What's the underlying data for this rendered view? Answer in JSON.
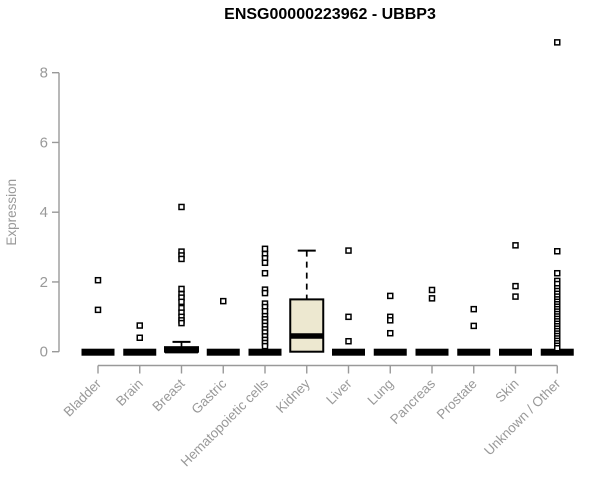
{
  "colors": {
    "background": "#ffffff",
    "title": "#000000",
    "axis": "#999999",
    "label": "#999999",
    "box_fill": "#EDE8D0",
    "box_stroke": "#000000",
    "point_stroke": "#000000"
  },
  "chart_data": {
    "type": "boxplot",
    "title": "ENSG00000223962 - UBBP3",
    "xlabel": "",
    "ylabel": "Expression",
    "ylim": [
      0,
      8
    ],
    "yticks": [
      0,
      2,
      4,
      6,
      8
    ],
    "grid": false,
    "legend": "none",
    "categories": [
      "Bladder",
      "Brain",
      "Breast",
      "Gastric",
      "Hematopoietic cells",
      "Kidney",
      "Liver",
      "Lung",
      "Pancreas",
      "Prostate",
      "Skin",
      "Unknown / Other"
    ],
    "boxes": [
      {
        "category": "Bladder",
        "q1": 0,
        "median": 0,
        "q3": 0,
        "whisker_low": 0,
        "whisker_high": 0,
        "outliers": [
          2.05,
          1.2
        ]
      },
      {
        "category": "Brain",
        "q1": 0,
        "median": 0,
        "q3": 0,
        "whisker_low": 0,
        "whisker_high": 0,
        "outliers": [
          0.75,
          0.4
        ]
      },
      {
        "category": "Breast",
        "q1": 0,
        "median": 0.03,
        "q3": 0.13,
        "whisker_low": 0,
        "whisker_high": 0.28,
        "outliers": [
          4.15,
          2.87,
          2.76,
          2.66,
          1.8,
          1.65,
          1.55,
          1.43,
          1.25,
          1.12,
          1.0,
          0.9,
          0.82
        ]
      },
      {
        "category": "Gastric",
        "q1": 0,
        "median": 0,
        "q3": 0,
        "whisker_low": 0,
        "whisker_high": 0,
        "outliers": [
          1.45
        ]
      },
      {
        "category": "Hematopoietic cells",
        "q1": 0,
        "median": 0,
        "q3": 0,
        "whisker_low": 0,
        "whisker_high": 0,
        "outliers": [
          2.95,
          2.8,
          2.68,
          2.55,
          2.25,
          1.78,
          1.68,
          1.38,
          1.28,
          1.16,
          1.02,
          0.93,
          0.84,
          0.74,
          0.64,
          0.55,
          0.44,
          0.34,
          0.25,
          0.16
        ]
      },
      {
        "category": "Kidney",
        "q1": 0,
        "median": 0.45,
        "q3": 1.5,
        "whisker_low": 0,
        "whisker_high": 2.9,
        "outliers": []
      },
      {
        "category": "Liver",
        "q1": 0,
        "median": 0,
        "q3": 0,
        "whisker_low": 0,
        "whisker_high": 0,
        "outliers": [
          2.9,
          1.0,
          0.3
        ]
      },
      {
        "category": "Lung",
        "q1": 0,
        "median": 0,
        "q3": 0,
        "whisker_low": 0,
        "whisker_high": 0,
        "outliers": [
          1.6,
          1.0,
          0.9,
          0.53
        ]
      },
      {
        "category": "Pancreas",
        "q1": 0,
        "median": 0,
        "q3": 0,
        "whisker_low": 0,
        "whisker_high": 0,
        "outliers": [
          1.77,
          1.53
        ]
      },
      {
        "category": "Prostate",
        "q1": 0,
        "median": 0,
        "q3": 0,
        "whisker_low": 0,
        "whisker_high": 0,
        "outliers": [
          1.22,
          0.74
        ]
      },
      {
        "category": "Skin",
        "q1": 0,
        "median": 0,
        "q3": 0,
        "whisker_low": 0,
        "whisker_high": 0,
        "outliers": [
          3.05,
          1.88,
          1.58
        ]
      },
      {
        "category": "Unknown / Other",
        "q1": 0,
        "median": 0,
        "q3": 0,
        "whisker_low": 0,
        "whisker_high": 0,
        "outliers": [
          8.87,
          2.88,
          2.25,
          2.03,
          1.94,
          1.82,
          1.74,
          1.66,
          1.58,
          1.5,
          1.43,
          1.36,
          1.29,
          1.22,
          1.15,
          1.08,
          1.01,
          0.94,
          0.87,
          0.8,
          0.73,
          0.66,
          0.59,
          0.52,
          0.45,
          0.38,
          0.31,
          0.24,
          0.17,
          0.1
        ]
      }
    ]
  }
}
